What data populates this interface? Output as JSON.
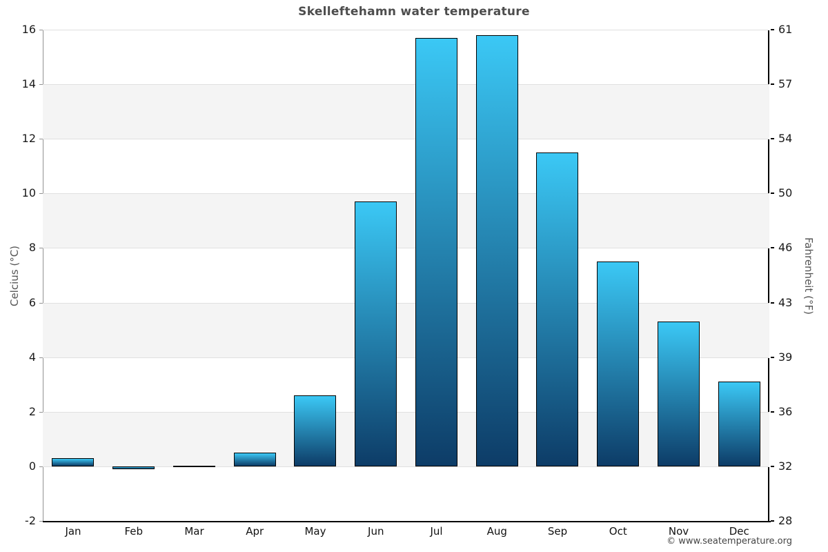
{
  "title": "Skelleftehamn water temperature",
  "copyright": "© www.seatemperature.org",
  "chart_data": {
    "type": "bar",
    "title": "Skelleftehamn water temperature",
    "categories": [
      "Jan",
      "Feb",
      "Mar",
      "Apr",
      "May",
      "Jun",
      "Jul",
      "Aug",
      "Sep",
      "Oct",
      "Nov",
      "Dec"
    ],
    "values": [
      0.3,
      -0.1,
      0.0,
      0.5,
      2.6,
      9.7,
      15.7,
      15.8,
      11.5,
      7.5,
      5.3,
      3.1
    ],
    "ylabel_left": "Celcius (°C)",
    "ylabel_right": "Fahrenheit (°F)",
    "ylim": [
      -2,
      16
    ],
    "yticks_celsius": [
      16,
      14,
      12,
      10,
      8,
      6,
      4,
      2,
      0,
      -2
    ],
    "yticks_fahrenheit": [
      61,
      57,
      54,
      50,
      46,
      43,
      39,
      36,
      32,
      28
    ],
    "grid": "horizontal-bands",
    "legend": false,
    "colors": {
      "bar_gradient_top": "#3bc8f5",
      "bar_gradient_bottom": "#0d3c67",
      "bar_border": "#000000",
      "band": "#f4f4f4",
      "gridline": "#e0e0e0",
      "title_text": "#4d4d4d"
    }
  }
}
